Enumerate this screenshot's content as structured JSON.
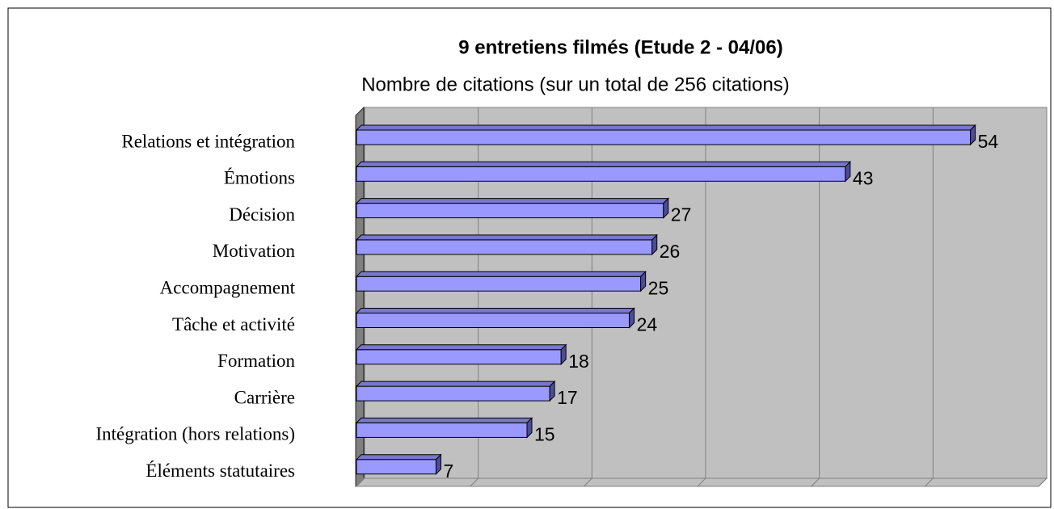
{
  "chart_data": {
    "type": "bar",
    "orientation": "horizontal",
    "title": "9 entretiens filmés (Etude 2 - 04/06)",
    "subtitle": "Nombre de citations (sur un total de 256 citations)",
    "categories": [
      "Relations et intégration",
      "Émotions",
      "Décision",
      "Motivation",
      "Accompagnement",
      "Tâche et activité",
      "Formation",
      "Carrière",
      "Intégration (hors relations)",
      "Éléments statutaires"
    ],
    "values": [
      54,
      43,
      27,
      26,
      25,
      24,
      18,
      17,
      15,
      7
    ],
    "color": "#9999ff",
    "xlim": [
      0,
      60
    ],
    "xticks": [
      0,
      10,
      20,
      30,
      40,
      50,
      60
    ],
    "grid": true
  }
}
